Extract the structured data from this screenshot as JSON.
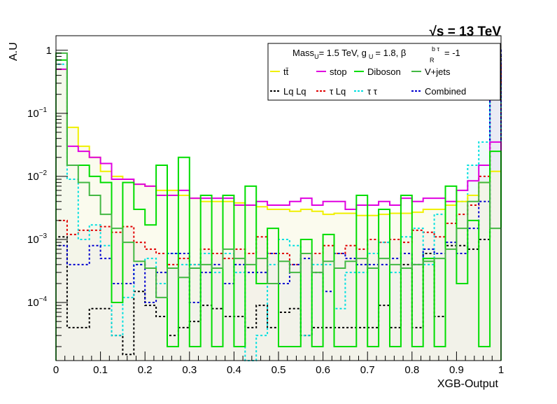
{
  "chart_data": {
    "type": "step-histogram",
    "energy_label": "√s = 13 TeV",
    "ylabel": "A.U",
    "xlabel": "XGB-Output",
    "x_range": [
      0,
      1
    ],
    "y_scale": "log",
    "y_range": [
      1.2e-05,
      1.7
    ],
    "x_ticks": [
      "0",
      "0.1",
      "0.2",
      "0.3",
      "0.4",
      "0.5",
      "0.6",
      "0.7",
      "0.8",
      "0.9",
      "1"
    ],
    "y_ticks": [
      {
        "base": "1",
        "exp": ""
      },
      {
        "base": "10",
        "exp": "−1"
      },
      {
        "base": "10",
        "exp": "−2"
      },
      {
        "base": "10",
        "exp": "−3"
      },
      {
        "base": "10",
        "exp": "−4"
      }
    ],
    "grid": false,
    "legend_position": "top-right",
    "legend": {
      "header": {
        "mass_prefix": "Mass",
        "mass_sub": "U",
        "mass_value": "= 1.5 TeV, g",
        "g_sub": "U",
        "g_value": "= 1.8, β",
        "beta_sub": "R",
        "beta_sup": "b τ",
        "beta_value": "= -1"
      },
      "entries": [
        {
          "key": "ttbar",
          "label": "tt̄"
        },
        {
          "key": "stop",
          "label": "stop"
        },
        {
          "key": "diboson",
          "label": "Diboson"
        },
        {
          "key": "vjets",
          "label": "V+jets"
        },
        {
          "key": "lqlq",
          "label": "Lq Lq"
        },
        {
          "key": "taulq",
          "label": "τ Lq"
        },
        {
          "key": "tautau",
          "label": "τ τ"
        },
        {
          "key": "combined",
          "label": "Combined"
        }
      ]
    },
    "bins": 40,
    "series": [
      {
        "key": "lqlq",
        "name": "Lq Lq",
        "color": "#000000",
        "dashed": true,
        "fill": "#d8d8e8",
        "values": [
          0.0011,
          4e-05,
          4e-05,
          8e-05,
          8e-05,
          3e-05,
          1.5e-05,
          0.00015,
          9e-05,
          6e-05,
          3e-05,
          4e-05,
          5e-05,
          9e-05,
          8e-05,
          6e-05,
          6e-05,
          4e-05,
          9e-05,
          4e-05,
          7e-05,
          8e-05,
          3e-05,
          4e-05,
          4e-05,
          4e-05,
          4e-05,
          4e-05,
          4e-05,
          9e-05,
          4e-05,
          0.0004,
          4e-05,
          0.0006,
          6e-05,
          0.0008,
          0.0008,
          0.0007,
          0.001,
          0.9
        ]
      },
      {
        "key": "taulq",
        "name": "τ Lq",
        "color": "#e00000",
        "dashed": true,
        "fill": "#f2dde6",
        "values": [
          0.002,
          0.0012,
          0.0014,
          0.0014,
          0.0016,
          0.0013,
          0.0016,
          0.0009,
          0.0007,
          0.0006,
          0.0004,
          0.0005,
          0.0004,
          0.0007,
          0.0006,
          0.0005,
          0.0007,
          0.0006,
          0.0011,
          0.0006,
          0.0006,
          0.0004,
          0.0006,
          0.0006,
          0.0008,
          0.0006,
          0.0008,
          0.0007,
          0.001,
          0.0009,
          0.001,
          0.0009,
          0.0014,
          0.0013,
          0.0011,
          0.0018,
          0.0025,
          0.0035,
          0.01,
          0.6
        ]
      },
      {
        "key": "tautau",
        "name": "τ τ",
        "color": "#00e0e0",
        "dashed": true,
        "fill": "#e8f6f6",
        "values": [
          0.6,
          0.009,
          0.001,
          0.0017,
          0.0008,
          3e-05,
          0.00012,
          0.0004,
          0.0005,
          0.0002,
          0.0006,
          0.0004,
          0.0004,
          0.0006,
          0.0003,
          0.0006,
          0.0003,
          1e-05,
          3e-05,
          0.0004,
          0.001,
          0.0008,
          3e-05,
          0.0004,
          0.0004,
          8e-05,
          0.0003,
          0.0003,
          0.0006,
          0.0009,
          0.0003,
          0.0011,
          0.0015,
          0.0004,
          0.0025,
          0.0035,
          0.004,
          0.015,
          0.035,
          0.3
        ]
      },
      {
        "key": "combined",
        "name": "Combined",
        "color": "#0000d0",
        "dashed": true,
        "fill": "#eaeaf6",
        "values": [
          0.0008,
          0.0004,
          0.0004,
          0.0008,
          0.0005,
          0.0002,
          0.0002,
          0.0004,
          0.0001,
          0.0003,
          0.0006,
          0.0006,
          0.0001,
          0.0003,
          0.0004,
          0.0002,
          0.0004,
          0.0003,
          0.0003,
          0.0006,
          0.0002,
          0.0004,
          0.0005,
          0.0003,
          0.00015,
          0.0006,
          0.0005,
          0.0004,
          0.0004,
          0.0004,
          0.0005,
          0.0006,
          0.0004,
          0.0007,
          0.0006,
          0.0009,
          0.0006,
          0.0015,
          0.004,
          1.0
        ]
      },
      {
        "key": "ttbar",
        "name": "tt̄",
        "color": "#f0f000",
        "dashed": false,
        "fill": "#f8f8e0",
        "values": [
          0.5,
          0.06,
          0.03,
          0.02,
          0.012,
          0.01,
          0.009,
          0.0075,
          0.007,
          0.006,
          0.006,
          0.005,
          0.0045,
          0.004,
          0.004,
          0.004,
          0.0038,
          0.0035,
          0.0033,
          0.003,
          0.003,
          0.0028,
          0.003,
          0.0028,
          0.0025,
          0.0026,
          0.0026,
          0.0024,
          0.0024,
          0.0025,
          0.0026,
          0.0026,
          0.0027,
          0.003,
          0.003,
          0.0035,
          0.004,
          0.005,
          0.008,
          0.012
        ]
      },
      {
        "key": "stop",
        "name": "stop",
        "color": "#e000e0",
        "dashed": false,
        "fill": "none",
        "values": [
          0.5,
          0.03,
          0.025,
          0.02,
          0.016,
          0.009,
          0.009,
          0.0075,
          0.007,
          0.005,
          0.005,
          0.006,
          0.0045,
          0.0045,
          0.0045,
          0.0045,
          0.0035,
          0.0035,
          0.004,
          0.0035,
          0.0035,
          0.004,
          0.0045,
          0.0035,
          0.004,
          0.004,
          0.003,
          0.0035,
          0.0035,
          0.004,
          0.0035,
          0.0045,
          0.004,
          0.0045,
          0.0045,
          0.004,
          0.006,
          0.0085,
          0.015,
          0.035
        ]
      },
      {
        "key": "diboson",
        "name": "Diboson",
        "color": "#00dd00",
        "dashed": false,
        "fill": "none",
        "values": [
          0.7,
          0.015,
          0.015,
          0.01,
          0.008,
          0.0001,
          0.008,
          0.003,
          0.0017,
          0.015,
          2e-05,
          0.02,
          2e-05,
          0.005,
          2e-05,
          0.005,
          2e-05,
          0.007,
          0.0002,
          0.0015,
          2e-05,
          2e-05,
          0.001,
          2e-05,
          0.0012,
          2e-05,
          2e-05,
          0.005,
          2e-05,
          0.003,
          2e-05,
          0.005,
          2e-05,
          0.0005,
          2e-05,
          0.007,
          0.0002,
          0.002,
          2e-05,
          0.025
        ]
      },
      {
        "key": "vjets",
        "name": "V+jets",
        "color": "#44b844",
        "dashed": false,
        "fill": "none",
        "values": [
          0.9,
          0.015,
          0.008,
          0.005,
          0.0025,
          0.0015,
          0.0009,
          0.00045,
          0.00035,
          0.00012,
          0.00035,
          0.00025,
          0.00035,
          0.0004,
          0.00035,
          0.0007,
          0.0005,
          0.0004,
          0.0005,
          0.0002,
          0.00045,
          0.0003,
          0.0006,
          0.0003,
          0.00045,
          0.00035,
          0.00045,
          0.0005,
          0.00035,
          0.0005,
          0.0004,
          0.00035,
          0.0004,
          0.00045,
          0.0005,
          0.0007,
          0.0015,
          0.004,
          0.008,
          0.0015
        ]
      }
    ]
  }
}
